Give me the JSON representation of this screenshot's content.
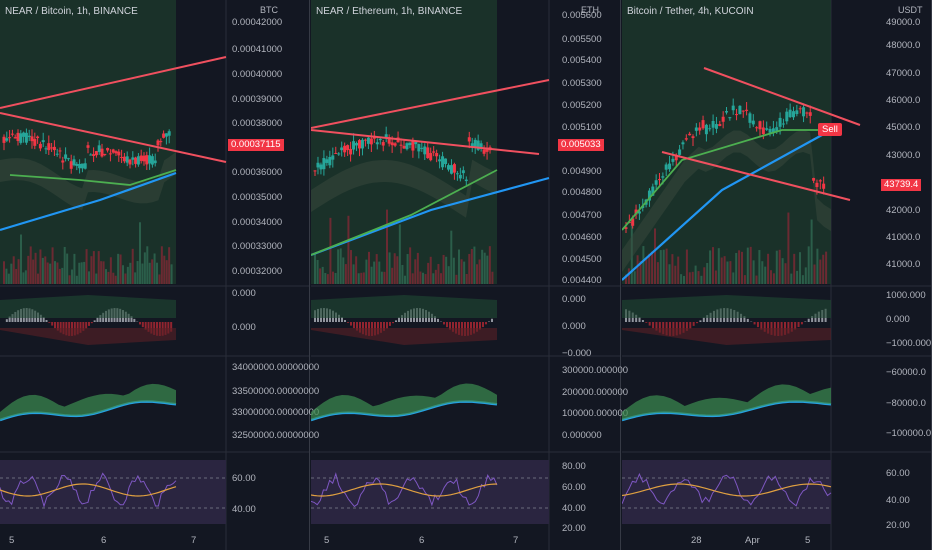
{
  "charts": [
    {
      "title": "NEAR / Bitcoin, 1h, BINANCE",
      "currency": "BTC",
      "price_labels": [
        "0.00042000",
        "0.00041000",
        "0.00040000",
        "0.00039000",
        "0.00038000",
        "0.00036000",
        "0.00035000",
        "0.00034000",
        "0.00033000",
        "0.00032000"
      ],
      "last_price": "0.00037115",
      "macd_labels": [
        "0.000",
        "0.000"
      ],
      "obv_labels": [
        "34000000.00000000",
        "33500000.00000000",
        "33000000.00000000",
        "32500000.00000000"
      ],
      "rsi_labels": [
        "60.00",
        "40.00"
      ],
      "time_labels": [
        "5",
        "6",
        "7"
      ]
    },
    {
      "title": "NEAR / Ethereum, 1h, BINANCE",
      "currency": "ETH",
      "price_labels": [
        "0.005600",
        "0.005500",
        "0.005400",
        "0.005300",
        "0.005200",
        "0.005100",
        "0.004900",
        "0.004800",
        "0.004700",
        "0.004600",
        "0.004500",
        "0.004400"
      ],
      "last_price": "0.005033",
      "macd_labels": [
        "0.000",
        "0.000",
        "−0.000"
      ],
      "obv_labels": [
        "300000.000000",
        "200000.000000",
        "100000.000000",
        "0.000000"
      ],
      "rsi_labels": [
        "80.00",
        "60.00",
        "40.00",
        "20.00"
      ],
      "time_labels": [
        "5",
        "6",
        "7"
      ]
    },
    {
      "title": "Bitcoin / Tether, 4h, KUCOIN",
      "currency": "USDT",
      "price_labels": [
        "49000.0",
        "48000.0",
        "47000.0",
        "46000.0",
        "45000.0",
        "43000.0",
        "42000.0",
        "41000.0"
      ],
      "last_price": "43739.4",
      "sell_label": "Sell",
      "macd_labels": [
        "1000.000",
        "0.000",
        "−1000.000"
      ],
      "obv_labels": [
        "−60000.0",
        "−80000.0",
        "−100000.0"
      ],
      "rsi_labels": [
        "60.00",
        "40.00",
        "20.00"
      ],
      "time_labels": [
        "28",
        "Apr",
        "5"
      ]
    }
  ],
  "colors": {
    "bg": "#131722",
    "bull": "#26a69a",
    "bear": "#f23645",
    "trend": "#f0505f",
    "ma_green": "#4caf50",
    "ma_blue": "#2196f3"
  }
}
